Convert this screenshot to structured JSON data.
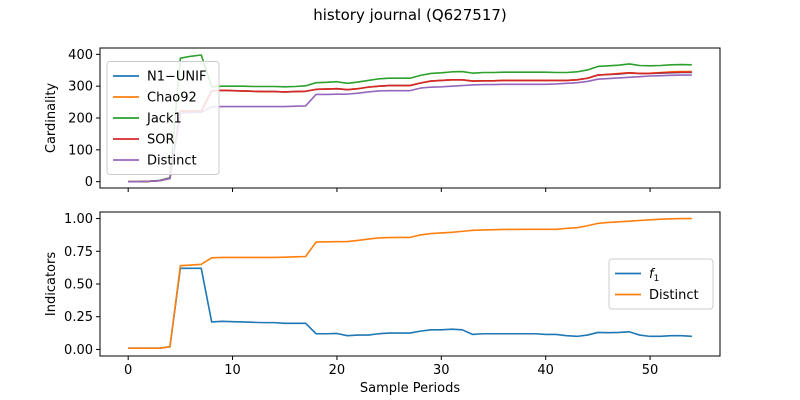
{
  "title": "history journal (Q627517)",
  "chart_data": [
    {
      "type": "line",
      "ylabel": "Cardinality",
      "xlim": [
        -2.7,
        56.7
      ],
      "ylim": [
        -20,
        420
      ],
      "yticks": [
        0,
        100,
        200,
        300,
        400
      ],
      "xticks": [
        0,
        10,
        20,
        30,
        40,
        50
      ],
      "show_xtick_labels": false,
      "legend_position": "center-left",
      "x": [
        0,
        1,
        2,
        3,
        4,
        5,
        6,
        7,
        8,
        9,
        10,
        11,
        12,
        13,
        14,
        15,
        16,
        17,
        18,
        19,
        20,
        21,
        22,
        23,
        24,
        25,
        26,
        27,
        28,
        29,
        30,
        31,
        32,
        33,
        34,
        35,
        36,
        37,
        38,
        39,
        40,
        41,
        42,
        43,
        44,
        45,
        46,
        47,
        48,
        49,
        50,
        51,
        52,
        53,
        54
      ],
      "series": [
        {
          "name": "N1−UNIF",
          "color": "#1f77b4",
          "values": [
            0,
            0,
            1,
            3,
            10,
            222,
            222,
            222,
            285,
            287,
            286,
            285,
            284,
            283,
            283,
            282,
            283,
            284,
            290,
            291,
            292,
            289,
            292,
            297,
            300,
            302,
            302,
            302,
            310,
            316,
            318,
            320,
            320,
            316,
            317,
            317,
            318,
            318,
            318,
            318,
            318,
            318,
            318,
            320,
            325,
            335,
            337,
            338,
            341,
            340,
            340,
            341,
            342,
            343,
            343
          ]
        },
        {
          "name": "Chao92",
          "color": "#ff7f0e",
          "values": [
            0,
            0,
            1,
            3,
            10,
            222,
            222,
            222,
            285,
            287,
            286,
            285,
            284,
            283,
            283,
            282,
            283,
            284,
            290,
            291,
            292,
            289,
            292,
            297,
            300,
            302,
            302,
            302,
            310,
            316,
            318,
            320,
            320,
            316,
            317,
            317,
            318,
            318,
            318,
            318,
            318,
            318,
            318,
            320,
            325,
            335,
            337,
            340,
            342,
            340,
            341,
            343,
            345,
            346,
            346
          ]
        },
        {
          "name": "Jack1",
          "color": "#2ca02c",
          "values": [
            0,
            0,
            1,
            4,
            12,
            388,
            394,
            398,
            298,
            300,
            300,
            300,
            299,
            299,
            299,
            298,
            299,
            301,
            311,
            312,
            314,
            309,
            313,
            318,
            323,
            325,
            325,
            325,
            334,
            340,
            342,
            345,
            346,
            341,
            343,
            343,
            344,
            344,
            344,
            344,
            344,
            343,
            343,
            345,
            351,
            362,
            364,
            366,
            370,
            365,
            364,
            365,
            367,
            368,
            367
          ]
        },
        {
          "name": "SOR",
          "color": "#d62728",
          "values": [
            0,
            0,
            1,
            3,
            10,
            222,
            222,
            222,
            285,
            287,
            286,
            285,
            284,
            283,
            283,
            282,
            283,
            284,
            290,
            291,
            292,
            289,
            292,
            297,
            300,
            302,
            302,
            302,
            310,
            316,
            318,
            320,
            320,
            316,
            317,
            317,
            318,
            318,
            318,
            318,
            318,
            318,
            318,
            320,
            325,
            335,
            337,
            339,
            342,
            340,
            340,
            342,
            343,
            344,
            344
          ]
        },
        {
          "name": "Distinct",
          "color": "#9467bd",
          "values": [
            0,
            0,
            1,
            3,
            10,
            215,
            217,
            218,
            235,
            236,
            236,
            236,
            236,
            236,
            236,
            236,
            237,
            238,
            274,
            274,
            275,
            275,
            278,
            282,
            285,
            286,
            286,
            286,
            294,
            297,
            298,
            300,
            302,
            304,
            305,
            305,
            306,
            306,
            306,
            306,
            306,
            307,
            309,
            311,
            315,
            322,
            324,
            326,
            328,
            330,
            332,
            333,
            334,
            335,
            335
          ]
        }
      ]
    },
    {
      "type": "line",
      "ylabel": "Indicators",
      "xlabel": "Sample Periods",
      "xlim": [
        -2.7,
        56.7
      ],
      "ylim": [
        -0.05,
        1.05
      ],
      "yticks": [
        0.0,
        0.25,
        0.5,
        0.75,
        1.0
      ],
      "ytick_labels": [
        "0.00",
        "0.25",
        "0.50",
        "0.75",
        "1.00"
      ],
      "xticks": [
        0,
        10,
        20,
        30,
        40,
        50
      ],
      "legend_position": "center-right",
      "x": [
        0,
        1,
        2,
        3,
        4,
        5,
        6,
        7,
        8,
        9,
        10,
        11,
        12,
        13,
        14,
        15,
        16,
        17,
        18,
        19,
        20,
        21,
        22,
        23,
        24,
        25,
        26,
        27,
        28,
        29,
        30,
        31,
        32,
        33,
        34,
        35,
        36,
        37,
        38,
        39,
        40,
        41,
        42,
        43,
        44,
        45,
        46,
        47,
        48,
        49,
        50,
        51,
        52,
        53,
        54
      ],
      "series": [
        {
          "name": "f1",
          "legend_main": "f",
          "legend_sub": "1",
          "color": "#1f77b4",
          "values": [
            0.01,
            0.01,
            0.01,
            0.01,
            0.02,
            0.62,
            0.62,
            0.62,
            0.21,
            0.215,
            0.212,
            0.21,
            0.207,
            0.205,
            0.205,
            0.2,
            0.2,
            0.2,
            0.12,
            0.12,
            0.122,
            0.105,
            0.11,
            0.11,
            0.12,
            0.125,
            0.125,
            0.125,
            0.14,
            0.15,
            0.15,
            0.155,
            0.15,
            0.115,
            0.12,
            0.12,
            0.12,
            0.12,
            0.12,
            0.12,
            0.115,
            0.115,
            0.105,
            0.1,
            0.11,
            0.13,
            0.128,
            0.13,
            0.135,
            0.11,
            0.1,
            0.1,
            0.105,
            0.105,
            0.1
          ]
        },
        {
          "name": "Distinct",
          "color": "#ff7f0e",
          "values": [
            0.01,
            0.01,
            0.01,
            0.01,
            0.02,
            0.64,
            0.645,
            0.65,
            0.7,
            0.703,
            0.703,
            0.703,
            0.703,
            0.703,
            0.703,
            0.705,
            0.708,
            0.71,
            0.82,
            0.822,
            0.823,
            0.824,
            0.833,
            0.843,
            0.852,
            0.855,
            0.856,
            0.856,
            0.875,
            0.885,
            0.89,
            0.895,
            0.902,
            0.91,
            0.913,
            0.915,
            0.917,
            0.917,
            0.918,
            0.918,
            0.918,
            0.918,
            0.925,
            0.93,
            0.945,
            0.963,
            0.97,
            0.975,
            0.98,
            0.985,
            0.99,
            0.995,
            0.998,
            1.0,
            1.0
          ]
        }
      ]
    }
  ]
}
